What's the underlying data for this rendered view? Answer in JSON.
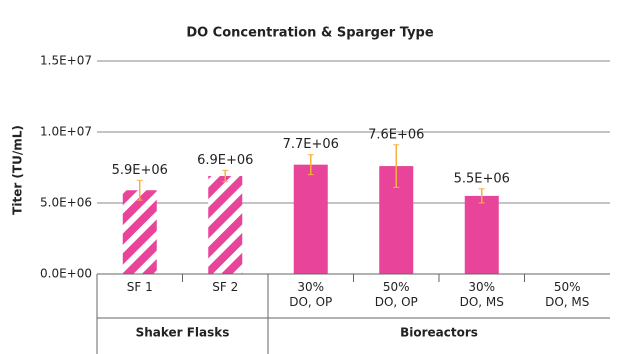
{
  "chart_data": {
    "type": "bar",
    "title": "DO Concentration & Sparger Type",
    "y_label": "Titer (TU/mL)",
    "categories": [
      "SF 1",
      "SF 2",
      "30%\nDO, OP",
      "50%\nDO, OP",
      "30%\nDO, MS",
      "50%\nDO, MS"
    ],
    "values": [
      5900000,
      6900000,
      7700000,
      7600000,
      5500000,
      null
    ],
    "value_labels": [
      "5.9E+06",
      "6.9E+06",
      "7.7E+06",
      "7.6E+06",
      "5.5E+06",
      null
    ],
    "errors": [
      700000,
      400000,
      700000,
      1500000,
      500000,
      null
    ],
    "groups": [
      {
        "name": "Shaker Flasks",
        "count": 2,
        "hatched": true
      },
      {
        "name": "Bioreactors",
        "count": 4,
        "hatched": false
      }
    ],
    "color": "#e8449a",
    "error_color": "#f5b041",
    "ylim": [
      0,
      15000000
    ],
    "yticks": [
      {
        "value": 0,
        "label": "0.0E+00"
      },
      {
        "value": 5000000,
        "label": "5.0E+06"
      },
      {
        "value": 10000000,
        "label": "1.0E+07"
      },
      {
        "value": 15000000,
        "label": "1.5E+07"
      }
    ],
    "grid": true
  }
}
